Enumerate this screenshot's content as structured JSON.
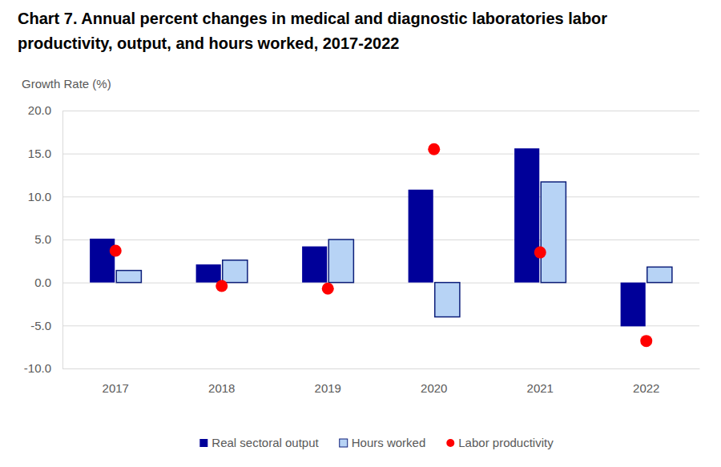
{
  "chart_data": {
    "type": "bar",
    "title": "Chart 7. Annual percent changes in medical and diagnostic laboratories labor productivity, output, and hours worked, 2017-2022",
    "y_label": "Growth Rate (%)",
    "categories": [
      "2017",
      "2018",
      "2019",
      "2020",
      "2021",
      "2022"
    ],
    "series": [
      {
        "name": "Real sectoral output",
        "type": "bar",
        "color": "#000099",
        "values": [
          5.1,
          2.1,
          4.2,
          10.8,
          15.6,
          -5.1
        ]
      },
      {
        "name": "Hours worked",
        "type": "bar",
        "color": "#b7d3f5",
        "values": [
          1.4,
          2.6,
          5.0,
          -4.0,
          11.7,
          1.8
        ]
      },
      {
        "name": "Labor productivity",
        "type": "scatter",
        "marker": "circle",
        "color": "#ff0000",
        "values": [
          3.7,
          -0.4,
          -0.7,
          15.5,
          3.5,
          -6.8
        ]
      }
    ],
    "ylim": [
      -10,
      20
    ],
    "yticks": [
      {
        "value": -10,
        "label": "-10.0"
      },
      {
        "value": -5,
        "label": "-5.0"
      },
      {
        "value": 0,
        "label": "0.0"
      },
      {
        "value": 5,
        "label": "5.0"
      },
      {
        "value": 10,
        "label": "10.0"
      },
      {
        "value": 15,
        "label": "15.0"
      },
      {
        "value": 20,
        "label": "20.0"
      }
    ],
    "grid": true,
    "legend": "bottom"
  }
}
